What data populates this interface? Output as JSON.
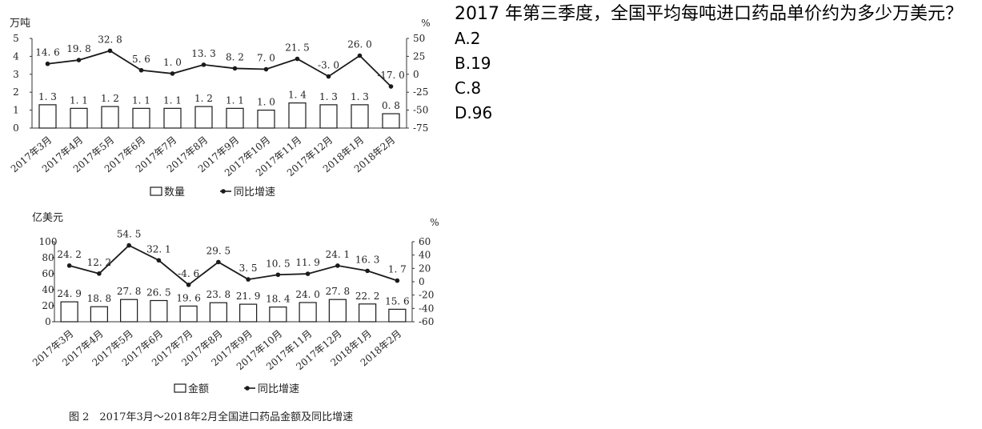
{
  "question": {
    "text": "2017 年第三季度，全国平均每吨进口药品单价约为多少万美元？",
    "options": [
      "A.2",
      "B.19",
      "C.8",
      "D.96"
    ]
  },
  "figure_caption": "图 2　2017年3月～2018年2月全国进口药品金额及同比增速",
  "colors": {
    "line": "#1a1a1a",
    "bar_fill": "#ffffff",
    "bar_stroke": "#1a1a1a",
    "axis": "#333333"
  },
  "chart_data": [
    {
      "type": "bar",
      "categories": [
        "2017年3月",
        "2017年4月",
        "2017年5月",
        "2017年6月",
        "2017年7月",
        "2017年8月",
        "2017年9月",
        "2017年10月",
        "2017年11月",
        "2017年12月",
        "2018年1月",
        "2018年2月"
      ],
      "y_left_unit": "万吨",
      "y_right_unit": "%",
      "ylim_left": [
        0,
        5
      ],
      "ylim_right": [
        -75,
        50
      ],
      "yticks_left": [
        0,
        1,
        2,
        3,
        4,
        5
      ],
      "yticks_right": [
        -75,
        -50,
        -25,
        0,
        25,
        50
      ],
      "series": [
        {
          "name": "数量",
          "type": "bar",
          "axis": "left",
          "values": [
            1.3,
            1.1,
            1.2,
            1.1,
            1.1,
            1.2,
            1.1,
            1.0,
            1.4,
            1.3,
            1.3,
            0.8
          ],
          "labels": [
            "1. 3",
            "1. 1",
            "1. 2",
            "1. 1",
            "1. 1",
            "1. 2",
            "1. 1",
            "1. 0",
            "1. 4",
            "1. 3",
            "1. 3",
            "0. 8"
          ]
        },
        {
          "name": "同比增速",
          "type": "line",
          "axis": "right",
          "values": [
            14.6,
            19.8,
            32.8,
            5.6,
            1.0,
            13.3,
            8.2,
            7.0,
            21.5,
            -3.0,
            26.0,
            -17.0
          ],
          "labels": [
            "14. 6",
            "19. 8",
            "32. 8",
            "5. 6",
            "1. 0",
            "13. 3",
            "8. 2",
            "7. 0",
            "21. 5",
            "-3. 0",
            "26. 0",
            "-17. 0"
          ]
        }
      ],
      "legend": [
        "数量",
        "同比增速"
      ],
      "legend_position": "bottom"
    },
    {
      "type": "bar",
      "categories": [
        "2017年3月",
        "2017年4月",
        "2017年5月",
        "2017年6月",
        "2017年7月",
        "2017年8月",
        "2017年9月",
        "2017年10月",
        "2017年11月",
        "2017年12月",
        "2018年1月",
        "2018年2月"
      ],
      "y_left_unit": "亿美元",
      "y_right_unit": "%",
      "ylim_left": [
        0,
        100
      ],
      "ylim_right": [
        -60,
        60
      ],
      "yticks_left": [
        0,
        20,
        40,
        60,
        80,
        100
      ],
      "yticks_right": [
        -60,
        -40,
        -20,
        0,
        20,
        40,
        60
      ],
      "series": [
        {
          "name": "金额",
          "type": "bar",
          "axis": "left",
          "values": [
            24.9,
            18.8,
            27.8,
            26.5,
            19.6,
            23.8,
            21.9,
            18.4,
            24.0,
            27.8,
            22.2,
            15.6
          ],
          "labels": [
            "24. 9",
            "18. 8",
            "27. 8",
            "26. 5",
            "19. 6",
            "23. 8",
            "21. 9",
            "18. 4",
            "24. 0",
            "27. 8",
            "22. 2",
            "15. 6"
          ]
        },
        {
          "name": "同比增速",
          "type": "line",
          "axis": "right",
          "values": [
            24.2,
            12.2,
            54.5,
            32.1,
            -4.6,
            29.5,
            3.5,
            10.5,
            11.9,
            24.1,
            16.3,
            1.7
          ],
          "labels": [
            "24. 2",
            "12. 2",
            "54. 5",
            "32. 1",
            "-4. 6",
            "29. 5",
            "3. 5",
            "10. 5",
            "11. 9",
            "24. 1",
            "16. 3",
            "1. 7"
          ]
        }
      ],
      "legend": [
        "金额",
        "同比增速"
      ],
      "legend_position": "bottom"
    }
  ]
}
